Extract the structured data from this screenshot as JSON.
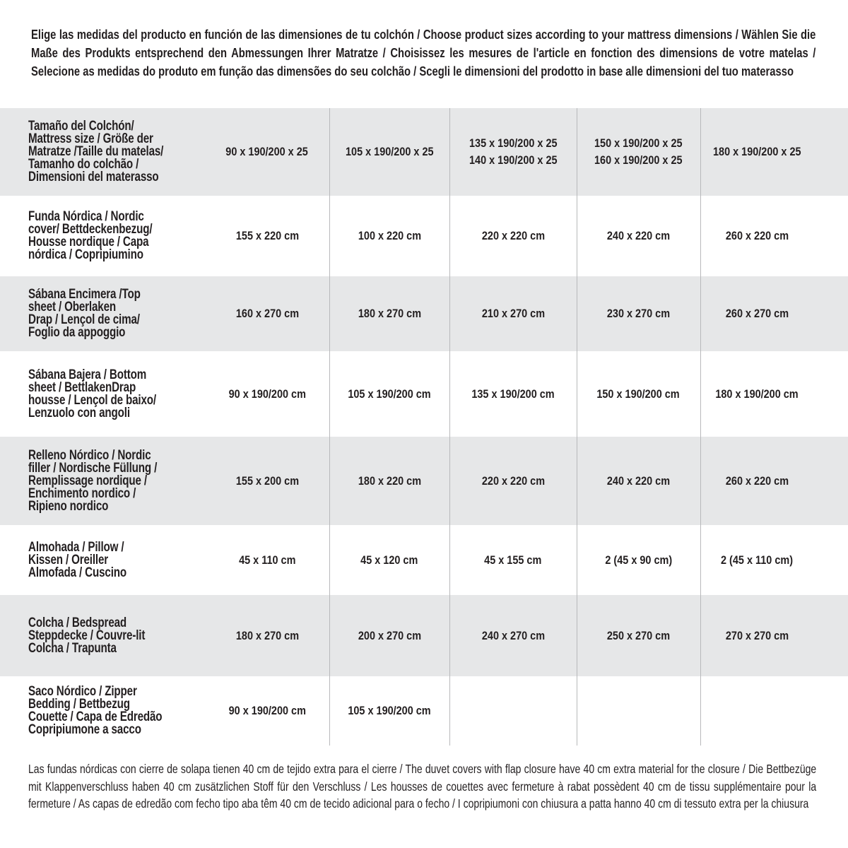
{
  "intro": "Elige las medidas del producto en función de las dimensiones de tu colchón / Choose product sizes according to your mattress dimensions / Wählen Sie die Maße des Produkts entsprechend den Abmessungen Ihrer Matratze / Choisissez les mesures de l'article en fonction des dimensions de votre matelas / Selecione as medidas do produto em função das dimensões do seu colchão / Scegli le dimensioni del prodotto in base alle dimensioni del tuo materasso",
  "table": {
    "rows": [
      {
        "label": "Tamaño del Colchón/\nMattress size / Größe der\nMatratze /Taille du matelas/\nTamanho do colchão /\nDimensioni del materasso",
        "values": [
          "90 x 190/200 x 25",
          "105 x 190/200 x 25",
          "135 x 190/200 x 25\n140 x 190/200 x 25",
          "150 x 190/200 x 25\n160 x 190/200 x 25",
          "180 x 190/200 x 25"
        ]
      },
      {
        "label": "Funda Nórdica /   Nordic\ncover/ Bettdeckenbezug/\nHousse nordique  / Capa\nnórdica / Copripiumino",
        "values": [
          "155 x 220 cm",
          "100 x 220 cm",
          "220 x 220 cm",
          "240 x 220 cm",
          "260 x 220 cm"
        ]
      },
      {
        "label": "Sábana Encimera /Top\nsheet / Oberlaken\nDrap / Lençol de cima/\nFoglio da appoggio",
        "values": [
          "160 x 270 cm",
          "180 x 270 cm",
          "210 x 270 cm",
          "230 x 270 cm",
          "260 x 270 cm"
        ]
      },
      {
        "label": "Sábana Bajera / Bottom\nsheet / BettlakenDrap\nhousse / Lençol de baixo/\nLenzuolo con angoli",
        "values": [
          "90 x 190/200 cm",
          "105 x 190/200 cm",
          "135 x 190/200 cm",
          "150 x 190/200 cm",
          "180 x 190/200 cm"
        ]
      },
      {
        "label": "Relleno Nórdico / Nordic\nfiller / Nordische Füllung /\nRemplissage nordique /\nEnchimento nordico /\nRipieno nordico",
        "values": [
          "155 x 200 cm",
          "180 x 220 cm",
          "220 x 220 cm",
          "240 x 220 cm",
          "260 x 220 cm"
        ]
      },
      {
        "label": "Almohada  / Pillow /\nKissen / Oreiller\nAlmofada / Cuscino",
        "values": [
          "45 x 110 cm",
          "45 x 120 cm",
          "45 x 155 cm",
          "2 (45 x 90 cm)",
          "2 (45 x 110 cm)"
        ]
      },
      {
        "label": "Colcha / Bedspread\nSteppdecke / Couvre-lit\nColcha / Trapunta",
        "values": [
          "180 x 270 cm",
          "200 x 270 cm",
          "240 x 270 cm",
          "250 x 270 cm",
          "270 x 270 cm"
        ]
      },
      {
        "label": "Saco Nórdico / Zipper\nBedding / Bettbezug\nCouette  / Capa de Edredão\nCopripiumone a sacco",
        "values": [
          "90 x 190/200 cm",
          "105 x 190/200 cm",
          "",
          "",
          ""
        ]
      }
    ]
  },
  "footer": "Las fundas nórdicas con cierre de solapa tienen 40 cm de tejido extra para el cierre  / The duvet covers with flap closure have 40 cm extra material for the closure / Die Bettbezüge mit Klappenverschluss haben 40 cm zusätzlichen Stoff für den Verschluss / Les housses de couettes avec fermeture à rabat possèdent 40 cm de tissu supplémentaire pour la fermeture / As capas de edredão com fecho tipo aba têm 40 cm de tecido adicional para o fecho / I copripiumoni con chiusura a patta hanno 40 cm di tessuto extra per la chiusura",
  "colors": {
    "row_shade": "#e6e7e8",
    "text": "#231f20",
    "divider": "#b8b9bb"
  }
}
